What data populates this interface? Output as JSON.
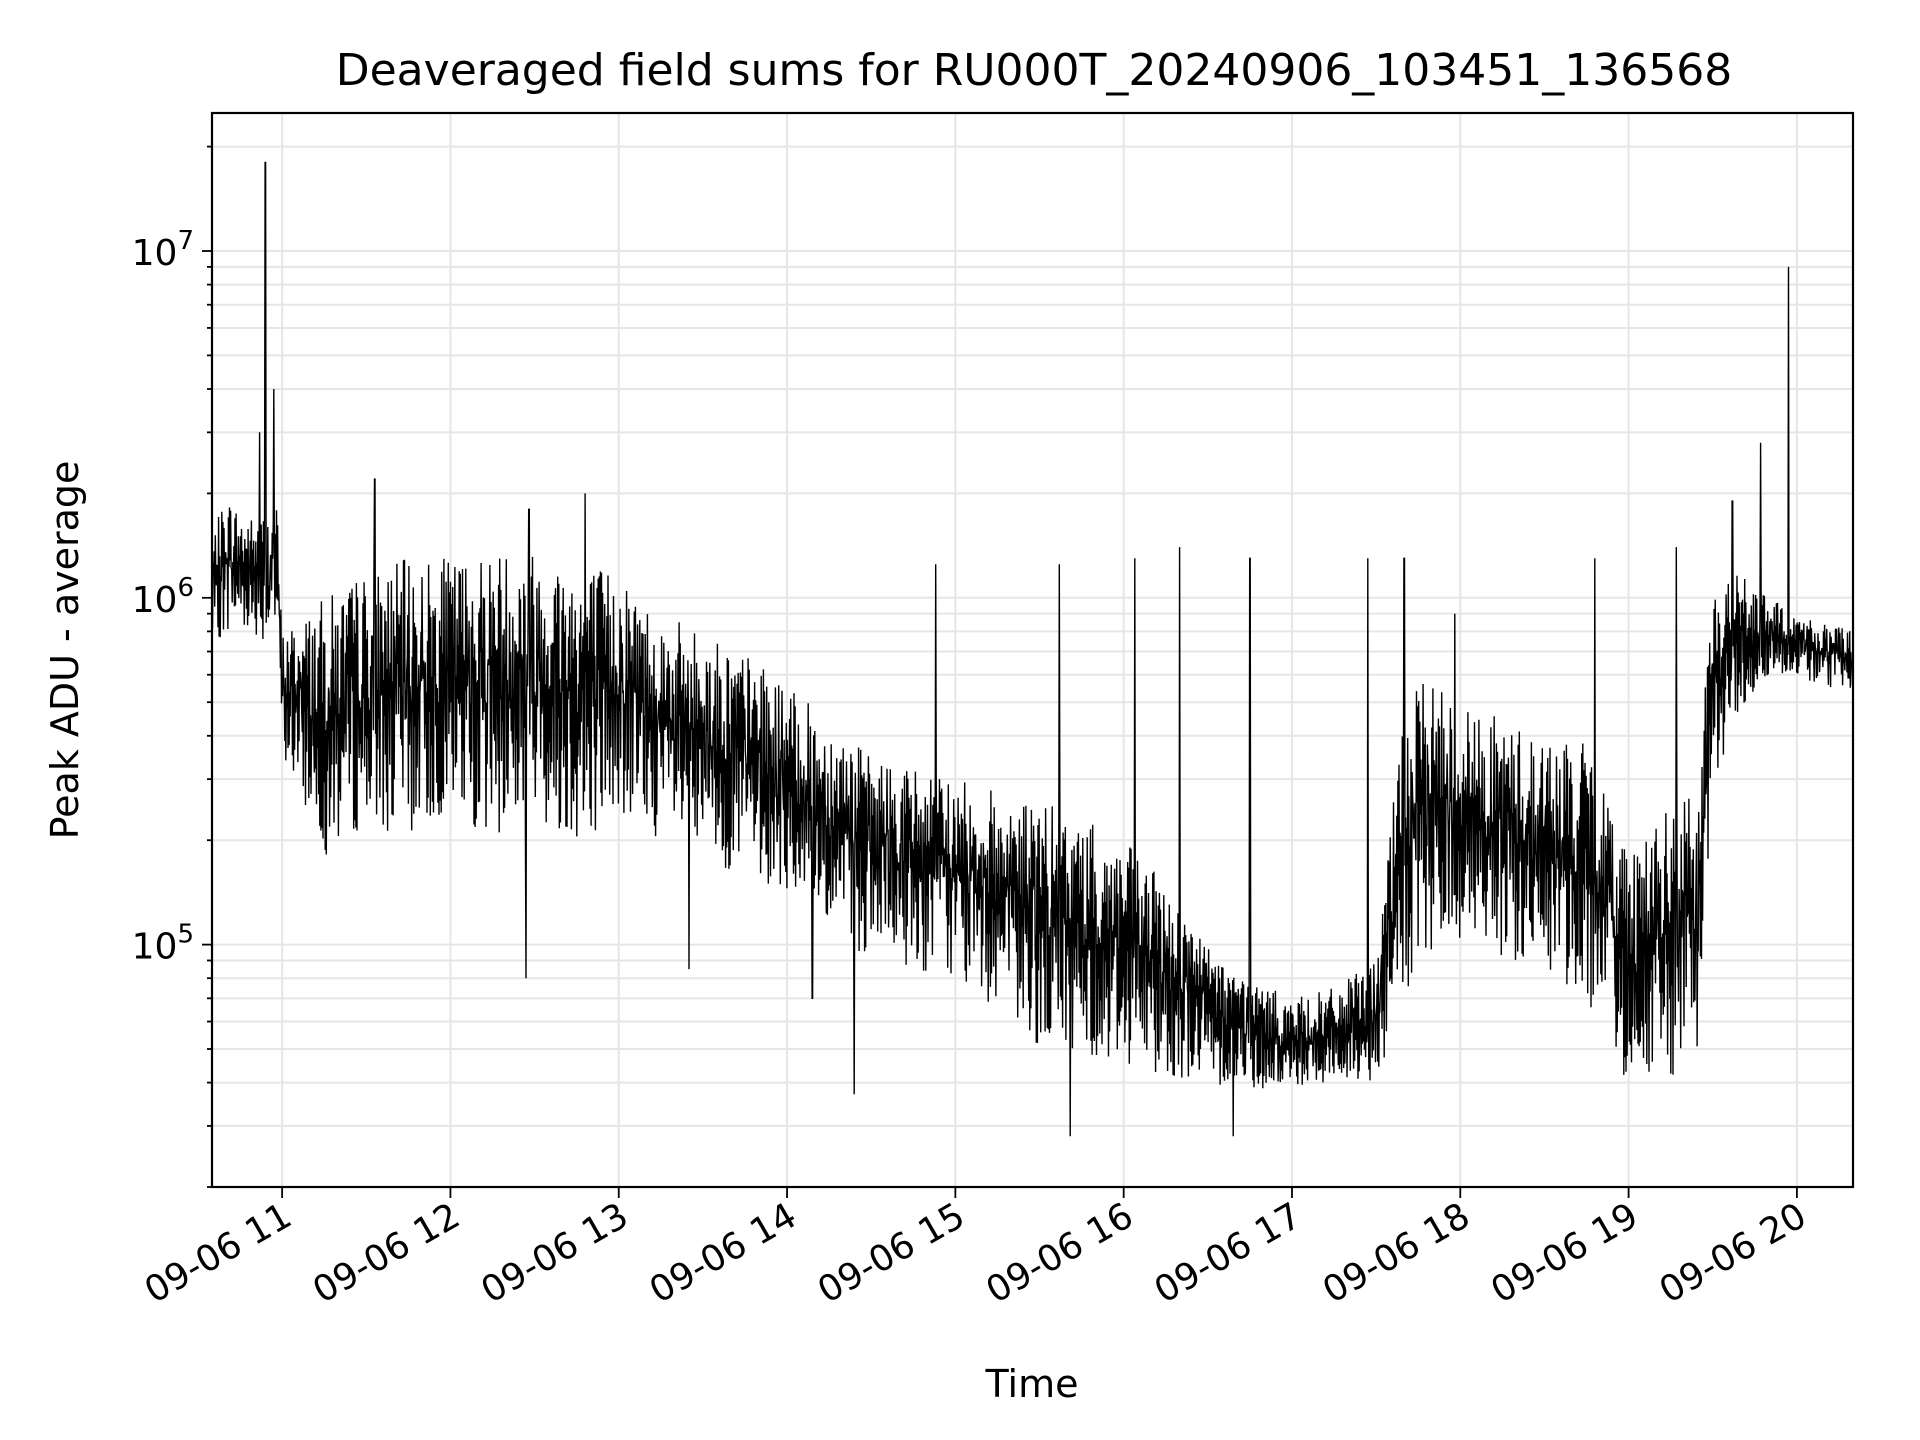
{
  "chart_data": {
    "type": "line",
    "title": "Deaveraged field sums for RU000T_20240906_103451_136568",
    "xlabel": "Time",
    "ylabel": "Peak ADU - average",
    "yscale": "log",
    "ylim": [
      20000,
      25000000
    ],
    "xlim": [
      "2024-09-06 10:35",
      "2024-09-06 20:20"
    ],
    "grid": true,
    "line_color": "#000000",
    "grid_color": "#e6e6e6",
    "x_ticks": [
      {
        "t": "2024-09-06 11:00",
        "label": "09-06 11"
      },
      {
        "t": "2024-09-06 12:00",
        "label": "09-06 12"
      },
      {
        "t": "2024-09-06 13:00",
        "label": "09-06 13"
      },
      {
        "t": "2024-09-06 14:00",
        "label": "09-06 14"
      },
      {
        "t": "2024-09-06 15:00",
        "label": "09-06 15"
      },
      {
        "t": "2024-09-06 16:00",
        "label": "09-06 16"
      },
      {
        "t": "2024-09-06 17:00",
        "label": "09-06 17"
      },
      {
        "t": "2024-09-06 18:00",
        "label": "09-06 18"
      },
      {
        "t": "2024-09-06 19:00",
        "label": "09-06 19"
      },
      {
        "t": "2024-09-06 20:00",
        "label": "09-06 20"
      }
    ],
    "y_ticks": [
      {
        "value": 100000,
        "base": "10",
        "exp": "5"
      },
      {
        "value": 1000000,
        "base": "10",
        "exp": "6"
      },
      {
        "value": 10000000,
        "base": "10",
        "exp": "7"
      }
    ],
    "series": [
      {
        "x": [
          "2024-09-06 10:35",
          "2024-09-06 10:40",
          "2024-09-06 10:45",
          "2024-09-06 10:50",
          "2024-09-06 10:55",
          "2024-09-06 10:58",
          "2024-09-06 11:00",
          "2024-09-06 11:15",
          "2024-09-06 11:30",
          "2024-09-06 11:45",
          "2024-09-06 12:00",
          "2024-09-06 12:15",
          "2024-09-06 12:30",
          "2024-09-06 12:45",
          "2024-09-06 13:00",
          "2024-09-06 13:15",
          "2024-09-06 13:30",
          "2024-09-06 13:45",
          "2024-09-06 14:00",
          "2024-09-06 14:15",
          "2024-09-06 14:30",
          "2024-09-06 14:45",
          "2024-09-06 15:00",
          "2024-09-06 15:15",
          "2024-09-06 15:30",
          "2024-09-06 15:45",
          "2024-09-06 16:00",
          "2024-09-06 16:15",
          "2024-09-06 16:30",
          "2024-09-06 16:45",
          "2024-09-06 17:00",
          "2024-09-06 17:15",
          "2024-09-06 17:30",
          "2024-09-06 17:40",
          "2024-09-06 17:50",
          "2024-09-06 18:00",
          "2024-09-06 18:15",
          "2024-09-06 18:30",
          "2024-09-06 18:45",
          "2024-09-06 19:00",
          "2024-09-06 19:15",
          "2024-09-06 19:25",
          "2024-09-06 19:30",
          "2024-09-06 19:40",
          "2024-09-06 19:50",
          "2024-09-06 20:00",
          "2024-09-06 20:10",
          "2024-09-06 20:20"
        ],
        "y_low": [
          700000,
          800000,
          800000,
          800000,
          700000,
          800000,
          350000,
          180000,
          220000,
          200000,
          240000,
          200000,
          220000,
          200000,
          230000,
          200000,
          170000,
          160000,
          140000,
          110000,
          90000,
          85000,
          80000,
          65000,
          50000,
          48000,
          45000,
          42000,
          40000,
          38000,
          38000,
          40000,
          40000,
          65000,
          90000,
          100000,
          90000,
          80000,
          70000,
          38000,
          40000,
          45000,
          300000,
          450000,
          600000,
          600000,
          550000,
          550000
        ],
        "y_high": [
          1500000,
          2000000,
          1800000,
          1700000,
          1800000,
          2000000,
          800000,
          1000000,
          1200000,
          1300000,
          1300000,
          1400000,
          1400000,
          1300000,
          1200000,
          900000,
          800000,
          700000,
          550000,
          450000,
          350000,
          330000,
          300000,
          280000,
          260000,
          230000,
          200000,
          150000,
          100000,
          80000,
          70000,
          75000,
          90000,
          500000,
          600000,
          500000,
          450000,
          400000,
          380000,
          200000,
          250000,
          300000,
          1100000,
          1200000,
          1000000,
          900000,
          850000,
          800000
        ],
        "spikes": [
          {
            "t": "2024-09-06 10:54",
            "y": 18000000
          },
          {
            "t": "2024-09-06 10:57",
            "y": 4000000
          },
          {
            "t": "2024-09-06 10:52",
            "y": 3000000
          },
          {
            "t": "2024-09-06 11:33",
            "y": 2200000
          },
          {
            "t": "2024-09-06 12:48",
            "y": 2000000
          },
          {
            "t": "2024-09-06 12:28",
            "y": 1800000
          },
          {
            "t": "2024-09-06 12:27",
            "y": 80000
          },
          {
            "t": "2024-09-06 13:25",
            "y": 85000
          },
          {
            "t": "2024-09-06 14:09",
            "y": 70000
          },
          {
            "t": "2024-09-06 14:24",
            "y": 37000
          },
          {
            "t": "2024-09-06 14:53",
            "y": 1250000
          },
          {
            "t": "2024-09-06 15:37",
            "y": 1250000
          },
          {
            "t": "2024-09-06 15:41",
            "y": 28000
          },
          {
            "t": "2024-09-06 16:04",
            "y": 1300000
          },
          {
            "t": "2024-09-06 16:20",
            "y": 1400000
          },
          {
            "t": "2024-09-06 16:39",
            "y": 28000
          },
          {
            "t": "2024-09-06 16:45",
            "y": 1300000
          },
          {
            "t": "2024-09-06 17:27",
            "y": 1300000
          },
          {
            "t": "2024-09-06 17:40",
            "y": 1300000
          },
          {
            "t": "2024-09-06 17:58",
            "y": 900000
          },
          {
            "t": "2024-09-06 18:48",
            "y": 1300000
          },
          {
            "t": "2024-09-06 19:17",
            "y": 1400000
          },
          {
            "t": "2024-09-06 19:37",
            "y": 1900000
          },
          {
            "t": "2024-09-06 19:47",
            "y": 2800000
          },
          {
            "t": "2024-09-06 19:57",
            "y": 9000000
          }
        ]
      }
    ]
  }
}
